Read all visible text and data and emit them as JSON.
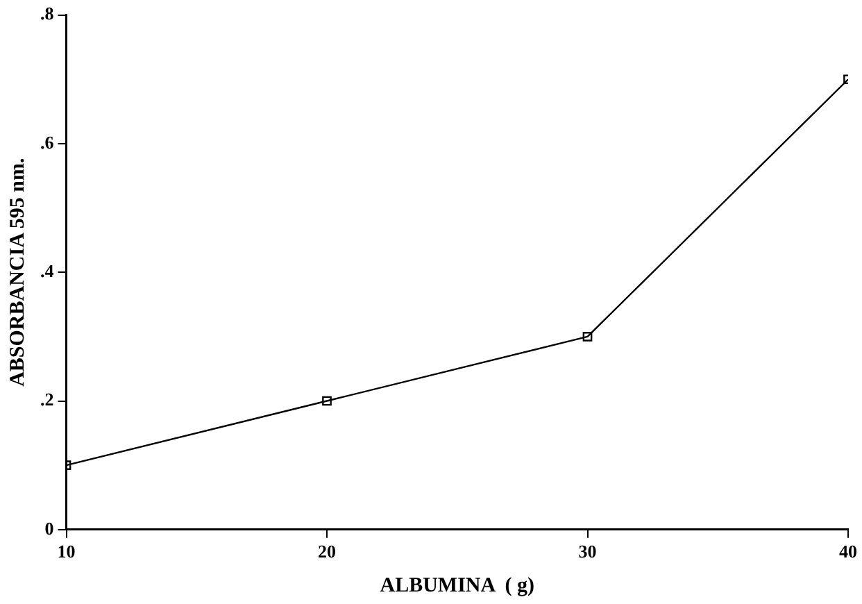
{
  "chart_data": {
    "type": "line",
    "xlabel": "ALBUMINA  ( g)",
    "ylabel": "ABSORBANCIA 595 nm.",
    "x": [
      10,
      20,
      30,
      40
    ],
    "series": [
      {
        "color": "#000000",
        "values": [
          0.1,
          0.2,
          0.3,
          0.7
        ]
      }
    ],
    "xlim": [
      10,
      40
    ],
    "xticks": [
      10,
      20,
      30,
      40
    ],
    "ylim": [
      0,
      0.8
    ],
    "yticks": [
      0,
      {
        "value": 0.2,
        "label": ".2"
      },
      {
        "value": 0.4,
        "label": ".4"
      },
      {
        "value": 0.6,
        "label": ".6"
      },
      {
        "value": 0.8,
        "label": ".8"
      }
    ],
    "grid": false,
    "legend": false,
    "marker": "square",
    "line_style": "solid"
  }
}
